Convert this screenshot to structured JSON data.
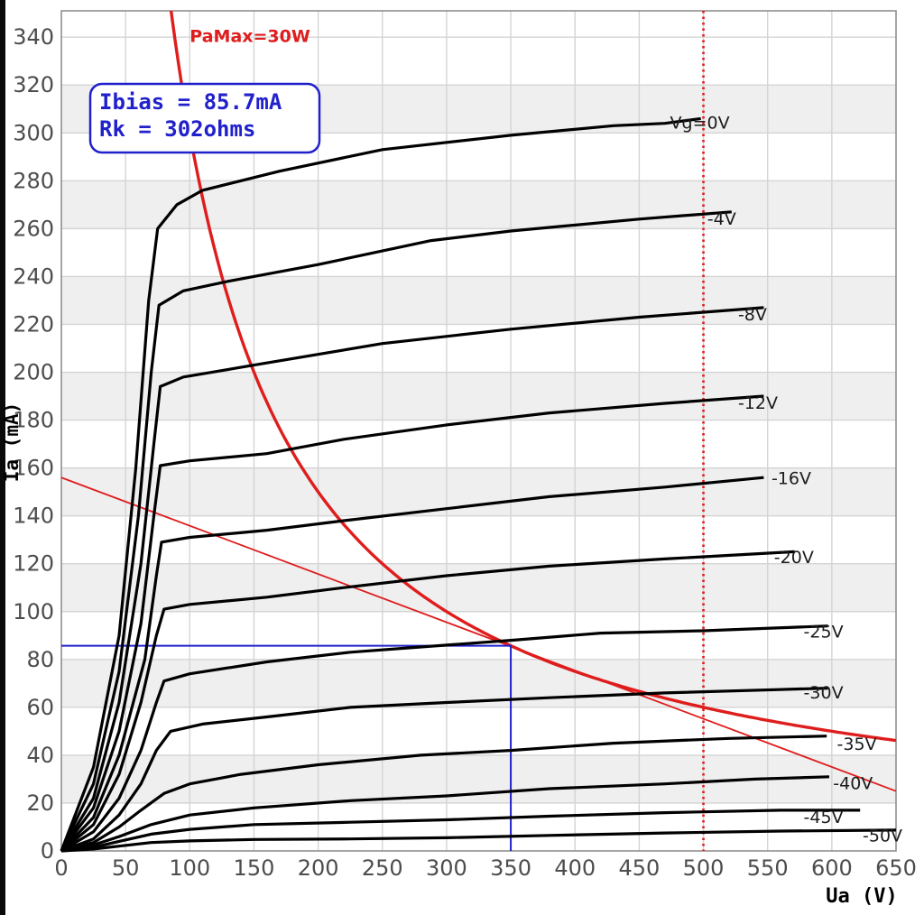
{
  "window": {
    "left_edge_strip_color": "#0a0a0a"
  },
  "colors": {
    "curve": "#000000",
    "red": "#df1d1d",
    "blue": "#2121cc",
    "grid": "#d4d4d4",
    "frame": "#8f8f8f",
    "band": "#efefef",
    "tick_text": "#4d4d4d",
    "curve_label_text": "#1c1c1c",
    "background": "#ffffff"
  },
  "annotation_box": {
    "line1": "Ibias = 85.7mA",
    "line2": "Rk = 302ohms"
  },
  "chart_data": {
    "type": "line",
    "title": "",
    "xlabel": "Ua (V)",
    "ylabel": "Ia (mA)",
    "xlim": [
      0,
      650
    ],
    "ylim": [
      0,
      351
    ],
    "grid": true,
    "xticks": [
      0,
      50,
      100,
      150,
      200,
      250,
      300,
      350,
      400,
      450,
      500,
      550,
      600,
      650
    ],
    "yticks": [
      0,
      20,
      40,
      60,
      80,
      100,
      120,
      140,
      160,
      180,
      200,
      220,
      240,
      260,
      280,
      300,
      320,
      340
    ],
    "shaded_bands_ma": [
      [
        20,
        40
      ],
      [
        60,
        80
      ],
      [
        100,
        120
      ],
      [
        140,
        160
      ],
      [
        180,
        200
      ],
      [
        220,
        240
      ],
      [
        260,
        280
      ],
      [
        300,
        320
      ]
    ],
    "series": [
      {
        "name": "Vg=0V",
        "points": [
          [
            0,
            0
          ],
          [
            25,
            35
          ],
          [
            45,
            90
          ],
          [
            58,
            160
          ],
          [
            68,
            230
          ],
          [
            75,
            260
          ],
          [
            90,
            270
          ],
          [
            110,
            276
          ],
          [
            170,
            284
          ],
          [
            250,
            293
          ],
          [
            350,
            299
          ],
          [
            430,
            303
          ],
          [
            470,
            304
          ],
          [
            498,
            306
          ]
        ]
      },
      {
        "name": "-4V",
        "points": [
          [
            0,
            0
          ],
          [
            25,
            28
          ],
          [
            45,
            75
          ],
          [
            60,
            140
          ],
          [
            70,
            200
          ],
          [
            76,
            228
          ],
          [
            95,
            234
          ],
          [
            130,
            238
          ],
          [
            200,
            245
          ],
          [
            288,
            255
          ],
          [
            350,
            259
          ],
          [
            450,
            264
          ],
          [
            522,
            267
          ]
        ]
      },
      {
        "name": "-8V",
        "points": [
          [
            0,
            0
          ],
          [
            25,
            22
          ],
          [
            45,
            62
          ],
          [
            62,
            120
          ],
          [
            72,
            170
          ],
          [
            77,
            194
          ],
          [
            95,
            198
          ],
          [
            150,
            203
          ],
          [
            250,
            212
          ],
          [
            350,
            218
          ],
          [
            450,
            223
          ],
          [
            547,
            227
          ]
        ]
      },
      {
        "name": "-12V",
        "points": [
          [
            0,
            0
          ],
          [
            25,
            18
          ],
          [
            45,
            50
          ],
          [
            62,
            95
          ],
          [
            72,
            140
          ],
          [
            77,
            161
          ],
          [
            100,
            163
          ],
          [
            160,
            166
          ],
          [
            220,
            172
          ],
          [
            300,
            178
          ],
          [
            380,
            183
          ],
          [
            470,
            187
          ],
          [
            547,
            190
          ]
        ]
      },
      {
        "name": "-16V",
        "points": [
          [
            0,
            0
          ],
          [
            25,
            14
          ],
          [
            45,
            40
          ],
          [
            65,
            80
          ],
          [
            74,
            115
          ],
          [
            78,
            129
          ],
          [
            100,
            131
          ],
          [
            160,
            134
          ],
          [
            220,
            138
          ],
          [
            300,
            143
          ],
          [
            380,
            148
          ],
          [
            470,
            152
          ],
          [
            547,
            156
          ]
        ]
      },
      {
        "name": "-20V",
        "points": [
          [
            0,
            0
          ],
          [
            25,
            11
          ],
          [
            45,
            32
          ],
          [
            62,
            62
          ],
          [
            74,
            90
          ],
          [
            80,
            101
          ],
          [
            100,
            103
          ],
          [
            160,
            106
          ],
          [
            220,
            110
          ],
          [
            300,
            115
          ],
          [
            380,
            119
          ],
          [
            470,
            122
          ],
          [
            571,
            125
          ]
        ]
      },
      {
        "name": "-25V",
        "points": [
          [
            0,
            0
          ],
          [
            25,
            8
          ],
          [
            45,
            22
          ],
          [
            62,
            42
          ],
          [
            74,
            62
          ],
          [
            80,
            71
          ],
          [
            100,
            74
          ],
          [
            160,
            79
          ],
          [
            225,
            83
          ],
          [
            300,
            86
          ],
          [
            350,
            88
          ],
          [
            420,
            91
          ],
          [
            500,
            92
          ],
          [
            597,
            94
          ]
        ]
      },
      {
        "name": "-30V",
        "points": [
          [
            0,
            0
          ],
          [
            25,
            5
          ],
          [
            45,
            15
          ],
          [
            62,
            28
          ],
          [
            74,
            42
          ],
          [
            85,
            50
          ],
          [
            110,
            53
          ],
          [
            160,
            56
          ],
          [
            225,
            60
          ],
          [
            300,
            62
          ],
          [
            380,
            64
          ],
          [
            470,
            66
          ],
          [
            597,
            68
          ]
        ]
      },
      {
        "name": "-35V",
        "points": [
          [
            0,
            0
          ],
          [
            25,
            3.5
          ],
          [
            45,
            10
          ],
          [
            62,
            17
          ],
          [
            80,
            24
          ],
          [
            100,
            28
          ],
          [
            140,
            32
          ],
          [
            200,
            36
          ],
          [
            280,
            40
          ],
          [
            350,
            42
          ],
          [
            430,
            45
          ],
          [
            520,
            47
          ],
          [
            596,
            48
          ]
        ]
      },
      {
        "name": "-40V",
        "points": [
          [
            0,
            0
          ],
          [
            25,
            2.5
          ],
          [
            45,
            6
          ],
          [
            70,
            11
          ],
          [
            100,
            15
          ],
          [
            150,
            18
          ],
          [
            225,
            21
          ],
          [
            300,
            23
          ],
          [
            380,
            26
          ],
          [
            470,
            28
          ],
          [
            540,
            30
          ],
          [
            598,
            31
          ]
        ]
      },
      {
        "name": "-45V",
        "points": [
          [
            0,
            0
          ],
          [
            25,
            1.5
          ],
          [
            45,
            4
          ],
          [
            70,
            7
          ],
          [
            100,
            9
          ],
          [
            150,
            11
          ],
          [
            225,
            12
          ],
          [
            300,
            13
          ],
          [
            380,
            14.5
          ],
          [
            470,
            16
          ],
          [
            560,
            17
          ],
          [
            622,
            17
          ]
        ]
      },
      {
        "name": "-50V",
        "points": [
          [
            0,
            0
          ],
          [
            25,
            0.8
          ],
          [
            45,
            2
          ],
          [
            70,
            3.5
          ],
          [
            100,
            4.2
          ],
          [
            150,
            4.8
          ],
          [
            225,
            5
          ],
          [
            300,
            5.5
          ],
          [
            380,
            6.5
          ],
          [
            470,
            7.5
          ],
          [
            560,
            8.3
          ],
          [
            650,
            8.7
          ]
        ]
      }
    ],
    "curve_labels": [
      {
        "text": "Vg=0V",
        "ua": 474,
        "ia": 304
      },
      {
        "text": "-4V",
        "ua": 503,
        "ia": 264
      },
      {
        "text": "-8V",
        "ua": 527,
        "ia": 224
      },
      {
        "text": "-12V",
        "ua": 527,
        "ia": 187
      },
      {
        "text": "-16V",
        "ua": 553,
        "ia": 155.5
      },
      {
        "text": "-20V",
        "ua": 555,
        "ia": 122.5
      },
      {
        "text": "-25V",
        "ua": 578,
        "ia": 91.5
      },
      {
        "text": "-30V",
        "ua": 578,
        "ia": 66
      },
      {
        "text": "-35V",
        "ua": 604,
        "ia": 44.5
      },
      {
        "text": "-40V",
        "ua": 601,
        "ia": 28
      },
      {
        "text": "-45V",
        "ua": 578,
        "ia": 14
      },
      {
        "text": "-50V",
        "ua": 624,
        "ia": 6.3
      }
    ],
    "pa_max": {
      "watts": 30,
      "label": "PaMax=30W",
      "label_ua": 100,
      "label_ia": 338
    },
    "load_line": {
      "from": [
        0,
        156
      ],
      "to": [
        650,
        25
      ]
    },
    "screen_line_ua": 500,
    "bias_point": {
      "ua_v": 350,
      "ibias_ma": 85.7,
      "rk_ohms": 302
    }
  }
}
